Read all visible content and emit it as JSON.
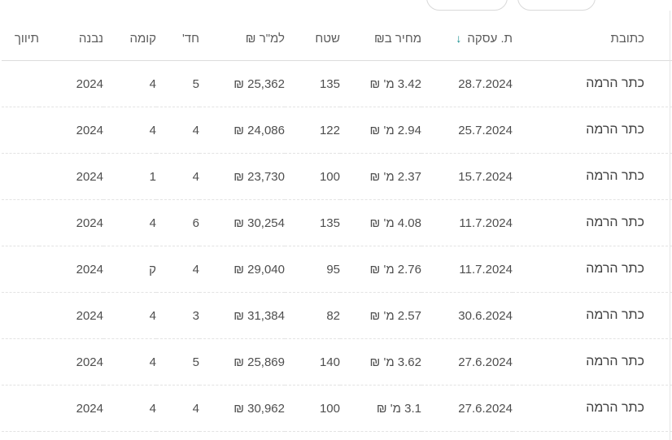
{
  "accent_color": "#0e8a8a",
  "toolbar": {
    "buttons": [
      {
        "label": ""
      },
      {
        "label": ""
      }
    ]
  },
  "table": {
    "columns": [
      {
        "key": "address",
        "label": "כתובת"
      },
      {
        "key": "deal_date",
        "label": "ת. עסקה",
        "sorted": "desc",
        "sort_icon": "↓"
      },
      {
        "key": "price",
        "label": "מחיר ב₪"
      },
      {
        "key": "area",
        "label": "שטח"
      },
      {
        "key": "price_per_sqm",
        "label": "₪ למ\"ר"
      },
      {
        "key": "rooms",
        "label": "חד'"
      },
      {
        "key": "floor",
        "label": "קומה"
      },
      {
        "key": "built",
        "label": "נבנה"
      },
      {
        "key": "brokerage",
        "label": "תיווך"
      }
    ],
    "rows": [
      {
        "address": "כתר הרמה",
        "deal_date": "28.7.2024",
        "price": "3.42 מ' ₪",
        "area": "135",
        "price_per_sqm": "25,362 ₪",
        "rooms": "5",
        "floor": "4",
        "built": "2024",
        "brokerage": ""
      },
      {
        "address": "כתר הרמה",
        "deal_date": "25.7.2024",
        "price": "2.94 מ' ₪",
        "area": "122",
        "price_per_sqm": "24,086 ₪",
        "rooms": "4",
        "floor": "4",
        "built": "2024",
        "brokerage": ""
      },
      {
        "address": "כתר הרמה",
        "deal_date": "15.7.2024",
        "price": "2.37 מ' ₪",
        "area": "100",
        "price_per_sqm": "23,730 ₪",
        "rooms": "4",
        "floor": "1",
        "built": "2024",
        "brokerage": ""
      },
      {
        "address": "כתר הרמה",
        "deal_date": "11.7.2024",
        "price": "4.08 מ' ₪",
        "area": "135",
        "price_per_sqm": "30,254 ₪",
        "rooms": "6",
        "floor": "4",
        "built": "2024",
        "brokerage": ""
      },
      {
        "address": "כתר הרמה",
        "deal_date": "11.7.2024",
        "price": "2.76 מ' ₪",
        "area": "95",
        "price_per_sqm": "29,040 ₪",
        "rooms": "4",
        "floor": "ק",
        "built": "2024",
        "brokerage": ""
      },
      {
        "address": "כתר הרמה",
        "deal_date": "30.6.2024",
        "price": "2.57 מ' ₪",
        "area": "82",
        "price_per_sqm": "31,384 ₪",
        "rooms": "3",
        "floor": "4",
        "built": "2024",
        "brokerage": ""
      },
      {
        "address": "כתר הרמה",
        "deal_date": "27.6.2024",
        "price": "3.62 מ' ₪",
        "area": "140",
        "price_per_sqm": "25,869 ₪",
        "rooms": "5",
        "floor": "4",
        "built": "2024",
        "brokerage": ""
      },
      {
        "address": "כתר הרמה",
        "deal_date": "27.6.2024",
        "price": "3.1 מ' ₪",
        "area": "100",
        "price_per_sqm": "30,962 ₪",
        "rooms": "4",
        "floor": "4",
        "built": "2024",
        "brokerage": ""
      }
    ]
  }
}
